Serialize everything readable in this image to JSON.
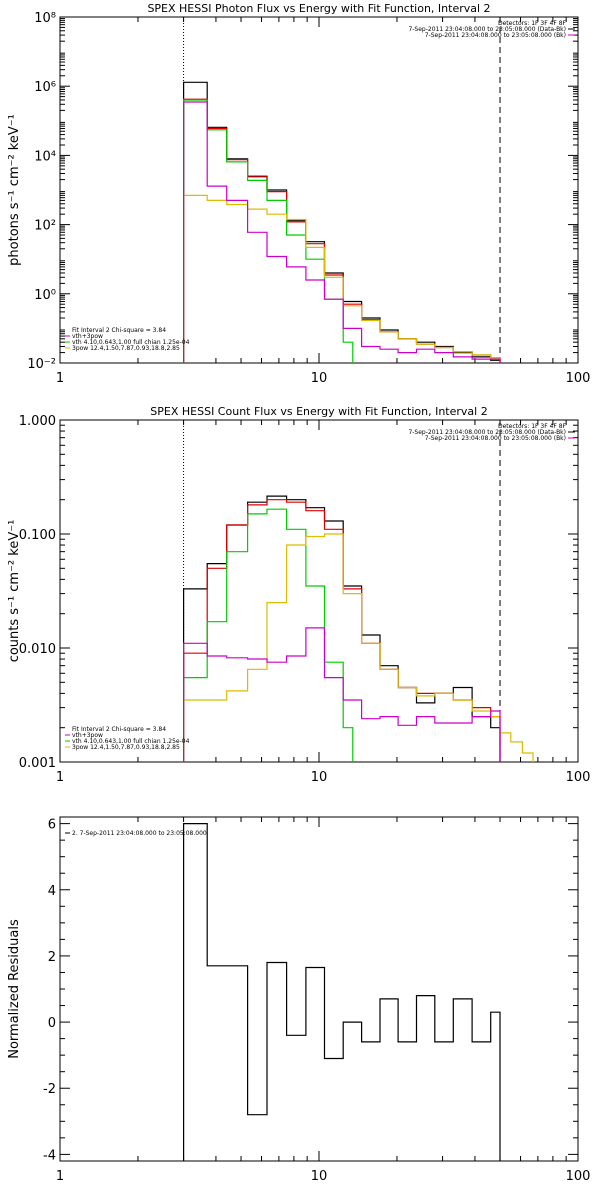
{
  "chart_data": [
    {
      "type": "line",
      "step": true,
      "title": "SPEX HESSI Photon Flux vs Energy with Fit Function, Interval 2",
      "ylabel": "photons s⁻¹ cm⁻² keV⁻¹",
      "xlabel": "",
      "xscale": "log",
      "yscale": "log",
      "xlim": [
        1,
        100
      ],
      "ylim": [
        0.01,
        100000000
      ],
      "xticks": [
        1,
        10,
        100
      ],
      "xtick_labels": [
        "1",
        "10",
        "100"
      ],
      "yticks": [
        0.01,
        1,
        100,
        10000,
        1000000,
        100000000
      ],
      "ytick_labels": [
        "10⁻²",
        "10⁰",
        "10²",
        "10⁴",
        "10⁶",
        "10⁸"
      ],
      "vlines": [
        {
          "x": 3,
          "style": "dotted",
          "color": "#000000"
        },
        {
          "x": 50,
          "style": "dashed",
          "color": "#000000"
        }
      ],
      "header": [
        "Detectors: 1F 3F 4F 8F",
        "7-Sep-2011 23:04:08.000 to 23:05:08.000 (Data-Bk)",
        "7-Sep-2011 23:04:08.000 to 23:05:08.000 (Bk)"
      ],
      "header_colors": [
        "#000000",
        "#000000",
        "#cc00cc"
      ],
      "legend": [
        "Fit Interval 2   Chi-square = 3.84",
        "vth+3pow",
        "vth 4.10,0.643,1.00  full chian 1.25e-04",
        "3pow 12.4,1.50,7.87,0.93,18.8,2.85"
      ],
      "legend_colors": [
        "#000000",
        "#cc00cc",
        "#00cc00",
        "#ddbb00"
      ],
      "grid": false,
      "series": [
        {
          "name": "Data-Bk",
          "color": "#000000",
          "x": [
            3,
            3.7,
            4.4,
            5.3,
            6.3,
            7.5,
            8.9,
            10.5,
            12.4,
            14.6,
            17.2,
            20.2,
            23.8,
            28,
            33,
            39,
            46,
            50
          ],
          "y": [
            1300000,
            65000,
            8000,
            2500,
            1000,
            130,
            32,
            4,
            0.6,
            0.2,
            0.09,
            0.05,
            0.04,
            0.03,
            0.02,
            0.015,
            0.012,
            0.012
          ]
        },
        {
          "name": "vth+3pow",
          "color": "#dd0000",
          "x": [
            3,
            3.7,
            4.4,
            5.3,
            6.3,
            7.5,
            8.9,
            10.5,
            12.4,
            14.6,
            17.2,
            20.2,
            23.8,
            28,
            33,
            39,
            46,
            50
          ],
          "y": [
            420000,
            60000,
            7500,
            2400,
            900,
            120,
            28,
            3.5,
            0.5,
            0.18,
            0.08,
            0.05,
            0.035,
            0.028,
            0.021,
            0.017,
            0.014,
            0.014
          ]
        },
        {
          "name": "vth",
          "color": "#00cc00",
          "x": [
            3,
            3.7,
            4.4,
            5.3,
            6.3,
            7.5,
            8.9,
            10.5,
            12.4,
            13.5
          ],
          "y": [
            400000,
            55000,
            6500,
            1900,
            500,
            50,
            10,
            0.7,
            0.04,
            0.04
          ]
        },
        {
          "name": "3pow",
          "color": "#ddbb00",
          "x": [
            3,
            3.7,
            4.4,
            5.3,
            6.3,
            7.5,
            8.9,
            10.5,
            12.4,
            14.6,
            17.2,
            20.2,
            23.8,
            28,
            33,
            39,
            46,
            50
          ],
          "y": [
            700,
            500,
            380,
            280,
            200,
            140,
            22,
            3,
            0.45,
            0.17,
            0.08,
            0.05,
            0.035,
            0.028,
            0.021,
            0.017,
            0.014,
            0.014
          ]
        },
        {
          "name": "Bk",
          "color": "#cc00cc",
          "x": [
            3,
            3.7,
            4.4,
            5.3,
            6.3,
            7.5,
            8.9,
            10.5,
            12.4,
            14.6,
            17.2,
            20.2,
            23.8,
            28,
            33,
            39,
            46,
            50
          ],
          "y": [
            350000,
            1300,
            500,
            60,
            12,
            6,
            2.5,
            0.7,
            0.1,
            0.03,
            0.025,
            0.02,
            0.025,
            0.02,
            0.015,
            0.013,
            0.013,
            0.013
          ]
        }
      ]
    },
    {
      "type": "line",
      "step": true,
      "title": "SPEX HESSI Count Flux vs Energy with Fit Function, Interval 2",
      "ylabel": "counts s⁻¹ cm⁻² keV⁻¹",
      "xlabel": "",
      "xscale": "log",
      "yscale": "log",
      "xlim": [
        1,
        100
      ],
      "ylim": [
        0.001,
        1
      ],
      "xticks": [
        1,
        10,
        100
      ],
      "xtick_labels": [
        "1",
        "10",
        "100"
      ],
      "yticks": [
        0.001,
        0.01,
        0.1,
        1
      ],
      "ytick_labels": [
        "0.001",
        "0.010",
        "0.100",
        "1.000"
      ],
      "vlines": [
        {
          "x": 3,
          "style": "dotted",
          "color": "#000000"
        },
        {
          "x": 50,
          "style": "dashed",
          "color": "#000000"
        }
      ],
      "header": [
        "Detectors: 1F 3F 4F 8F",
        "7-Sep-2011 23:04:08.000 to 23:05:08.000 (Data-Bk)",
        "7-Sep-2011 23:04:08.000 to 23:05:08.000 (Bk)"
      ],
      "header_colors": [
        "#000000",
        "#000000",
        "#cc00cc"
      ],
      "legend": [
        "Fit Interval 2   Chi-square = 3.84",
        "vth+3pow",
        "vth 4.10,0.643,1.00  full chian 1.25e-04",
        "3pow 12.4,1.50,7.87,0.93,18.8,2.85"
      ],
      "legend_colors": [
        "#000000",
        "#cc00cc",
        "#00cc00",
        "#ddbb00"
      ],
      "grid": false,
      "series": [
        {
          "name": "Data-Bk",
          "color": "#000000",
          "x": [
            3,
            3.7,
            4.4,
            5.3,
            6.3,
            7.5,
            8.9,
            10.5,
            12.4,
            14.6,
            17.2,
            20.2,
            23.8,
            28,
            33,
            39,
            46,
            50
          ],
          "y": [
            0.033,
            0.055,
            0.12,
            0.19,
            0.215,
            0.2,
            0.17,
            0.13,
            0.035,
            0.013,
            0.007,
            0.0045,
            0.0033,
            0.004,
            0.0045,
            0.0025,
            0.002,
            0.002
          ]
        },
        {
          "name": "vth+3pow",
          "color": "#dd0000",
          "x": [
            3,
            3.7,
            4.4,
            5.3,
            6.3,
            7.5,
            8.9,
            10.5,
            12.4,
            14.6,
            17.2,
            20.2,
            23.8,
            28,
            33,
            39,
            46,
            50
          ],
          "y": [
            0.009,
            0.05,
            0.12,
            0.18,
            0.2,
            0.19,
            0.16,
            0.11,
            0.033,
            0.011,
            0.0065,
            0.0045,
            0.004,
            0.004,
            0.0035,
            0.003,
            0.0025,
            0.0025
          ]
        },
        {
          "name": "vth",
          "color": "#00cc00",
          "x": [
            3,
            3.7,
            4.4,
            5.3,
            6.3,
            7.5,
            8.9,
            10.5,
            12.4,
            13.5
          ],
          "y": [
            0.0055,
            0.017,
            0.07,
            0.15,
            0.165,
            0.11,
            0.035,
            0.0075,
            0.002,
            0.001
          ]
        },
        {
          "name": "3pow",
          "color": "#ddbb00",
          "x": [
            3,
            3.7,
            4.4,
            5.3,
            6.3,
            7.5,
            8.9,
            10.5,
            12.4,
            14.6,
            17.2,
            20.2,
            23.8,
            28,
            33,
            39,
            46,
            50,
            55,
            61,
            67
          ],
          "y": [
            0.0035,
            0.0035,
            0.0042,
            0.0065,
            0.025,
            0.08,
            0.095,
            0.1,
            0.03,
            0.011,
            0.0065,
            0.0045,
            0.0038,
            0.004,
            0.0035,
            0.0028,
            0.0025,
            0.0018,
            0.0015,
            0.0012,
            0.001
          ]
        },
        {
          "name": "Bk",
          "color": "#cc00cc",
          "x": [
            3,
            3.7,
            4.4,
            5.3,
            6.3,
            7.5,
            8.9,
            10.5,
            12.4,
            14.6,
            17.2,
            20.2,
            23.8,
            28,
            33,
            39,
            46,
            50
          ],
          "y": [
            0.011,
            0.0085,
            0.0082,
            0.008,
            0.0075,
            0.0085,
            0.015,
            0.0055,
            0.0035,
            0.0024,
            0.0025,
            0.0021,
            0.0025,
            0.0022,
            0.0022,
            0.0025,
            0.0028,
            0.0028
          ]
        }
      ]
    },
    {
      "type": "line",
      "step": true,
      "title": "",
      "ylabel": "Normalized Residuals",
      "xlabel": "",
      "xscale": "log",
      "yscale": "linear",
      "xlim": [
        1,
        100
      ],
      "ylim": [
        -4.2,
        6.2
      ],
      "xticks": [
        1,
        10,
        100
      ],
      "xtick_labels": [
        "1",
        "10",
        "100"
      ],
      "yticks": [
        -4,
        -2,
        0,
        2,
        4,
        6
      ],
      "ytick_labels": [
        "-4",
        "-2",
        "0",
        "2",
        "4",
        "6"
      ],
      "vlines": [],
      "header": [],
      "header_colors": [],
      "legend": [
        "2.  7-Sep-2011 23:04:08.000 to 23:05:08.000"
      ],
      "legend_colors": [
        "#000000"
      ],
      "grid": false,
      "series": [
        {
          "name": "",
          "color": "#000000",
          "x": [
            3,
            3.7,
            4.4,
            5.3,
            6.3,
            7.5,
            8.9,
            10.5,
            12.4,
            14.6,
            17.2,
            20.2,
            23.8,
            28,
            33,
            39,
            46,
            50
          ],
          "y": [
            6,
            1.7,
            1.7,
            -2.8,
            1.8,
            -0.4,
            1.65,
            -1.1,
            0,
            -0.6,
            0.7,
            -0.6,
            0.8,
            -0.6,
            0.7,
            -0.6,
            0.3,
            -0.1
          ]
        }
      ]
    }
  ]
}
